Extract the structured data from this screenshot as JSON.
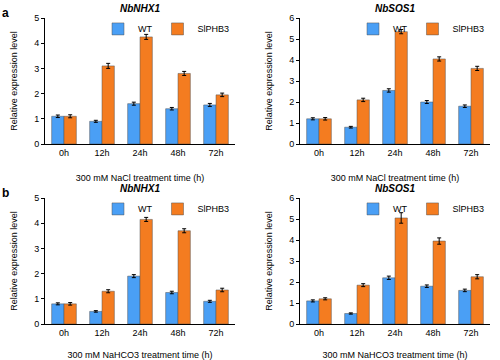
{
  "chart_data": [
    {
      "type": "bar",
      "title": "NbNHX1",
      "annotations": [
        "a"
      ],
      "x_label": "300 mM NaCl treatment time (h)",
      "y_label": "Relative expression level",
      "categories": [
        "0h",
        "12h",
        "24h",
        "48h",
        "72h"
      ],
      "series": [
        {
          "name": "WT",
          "color": "#4a9ff5",
          "values": [
            1.1,
            0.9,
            1.6,
            1.4,
            1.55
          ],
          "errors": [
            0.05,
            0.04,
            0.06,
            0.05,
            0.06
          ]
        },
        {
          "name": "SlPHB3",
          "color": "#f47c20",
          "values": [
            1.1,
            3.1,
            4.25,
            2.8,
            1.95
          ],
          "errors": [
            0.06,
            0.1,
            0.1,
            0.08,
            0.07
          ]
        }
      ],
      "ylim": [
        0,
        5
      ],
      "yticks": [
        0,
        1,
        2,
        3,
        4,
        5
      ],
      "legend": "upper right",
      "grid": false
    },
    {
      "type": "bar",
      "title": "NbSOS1",
      "x_label": "300 mM NaCl treatment time (h)",
      "y_label": "Relative expression level",
      "categories": [
        "0h",
        "12h",
        "24h",
        "48h",
        "72h"
      ],
      "series": [
        {
          "name": "WT",
          "color": "#4a9ff5",
          "values": [
            1.2,
            0.8,
            2.55,
            2.0,
            1.8
          ],
          "errors": [
            0.05,
            0.04,
            0.08,
            0.07,
            0.06
          ]
        },
        {
          "name": "SlPHB3",
          "color": "#f47c20",
          "values": [
            1.2,
            2.1,
            5.35,
            4.05,
            3.6
          ],
          "errors": [
            0.06,
            0.08,
            0.1,
            0.1,
            0.1
          ]
        }
      ],
      "ylim": [
        0,
        6
      ],
      "yticks": [
        0,
        1,
        2,
        3,
        4,
        5,
        6
      ],
      "legend": "upper right",
      "grid": false
    },
    {
      "type": "bar",
      "title": "NbNHX1",
      "annotations": [
        "b"
      ],
      "x_label": "300 mM NaHCO3 treatment time (h)",
      "y_label": "Relative expression level",
      "categories": [
        "0h",
        "12h",
        "24h",
        "48h",
        "72h"
      ],
      "series": [
        {
          "name": "WT",
          "color": "#4a9ff5",
          "values": [
            0.8,
            0.5,
            1.9,
            1.25,
            0.9
          ],
          "errors": [
            0.04,
            0.03,
            0.06,
            0.05,
            0.04
          ]
        },
        {
          "name": "SlPHB3",
          "color": "#f47c20",
          "values": [
            0.8,
            1.3,
            4.15,
            3.7,
            1.35
          ],
          "errors": [
            0.05,
            0.06,
            0.08,
            0.08,
            0.07
          ]
        }
      ],
      "ylim": [
        0,
        5
      ],
      "yticks": [
        0,
        1,
        2,
        3,
        4,
        5
      ],
      "legend": "upper right",
      "grid": false
    },
    {
      "type": "bar",
      "title": "NbSOS1",
      "x_label": "300 mM NaHCO3 treatment time (h)",
      "y_label": "Relative expression level",
      "categories": [
        "0h",
        "12h",
        "24h",
        "48h",
        "72h"
      ],
      "series": [
        {
          "name": "WT",
          "color": "#4a9ff5",
          "values": [
            1.1,
            0.5,
            2.2,
            1.8,
            1.6
          ],
          "errors": [
            0.05,
            0.03,
            0.08,
            0.06,
            0.06
          ]
        },
        {
          "name": "SlPHB3",
          "color": "#f47c20",
          "values": [
            1.2,
            1.85,
            5.05,
            3.95,
            2.25
          ],
          "errors": [
            0.05,
            0.07,
            0.25,
            0.15,
            0.1
          ]
        }
      ],
      "ylim": [
        0,
        6
      ],
      "yticks": [
        0,
        1,
        2,
        3,
        4,
        5,
        6
      ],
      "legend": "upper right",
      "grid": false
    }
  ]
}
